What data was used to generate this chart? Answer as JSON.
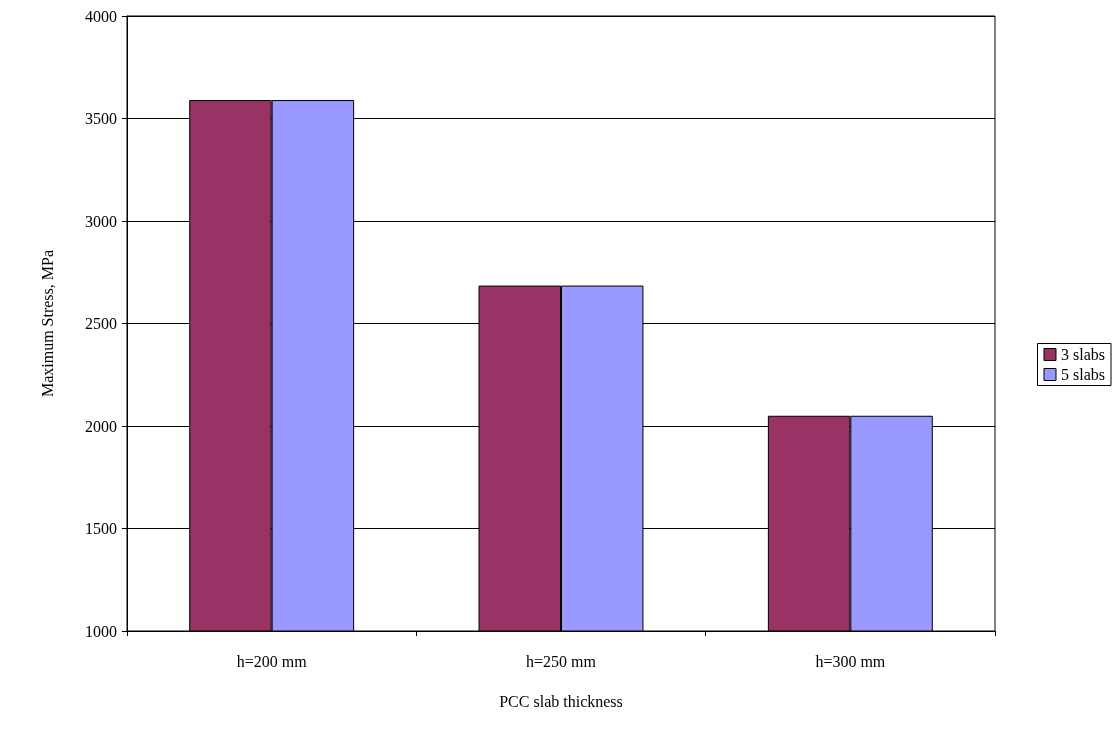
{
  "chart_data": {
    "type": "bar",
    "xlabel": "PCC slab thickness",
    "ylabel": "Maximum Stress, MPa",
    "categories": [
      "h=200 mm",
      "h=250 mm",
      "h=300 mm"
    ],
    "series": [
      {
        "name": "3 slabs",
        "color": "#993366",
        "values": [
          3590,
          2685,
          2050
        ]
      },
      {
        "name": "5 slabs",
        "color": "#9999ff",
        "values": [
          3590,
          2685,
          2050
        ]
      }
    ],
    "ylim": [
      1000,
      4000
    ],
    "yticks": [
      1000,
      1500,
      2000,
      2500,
      3000,
      3500,
      4000
    ],
    "grid": "y",
    "legend": "right"
  }
}
